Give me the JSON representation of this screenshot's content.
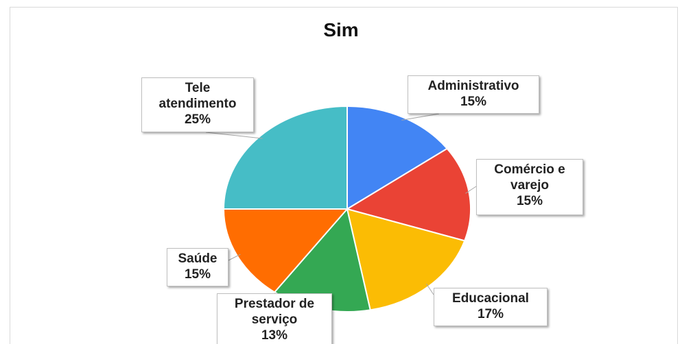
{
  "chart_data": {
    "type": "pie",
    "title": "Sim",
    "categories": [
      "Administrativo",
      "Comércio e varejo",
      "Educacional",
      "Prestador de serviço",
      "Saúde",
      "Tele atendimento"
    ],
    "values": [
      15,
      15,
      17,
      13,
      15,
      25
    ],
    "value_labels": [
      "15%",
      "15%",
      "17%",
      "13%",
      "15%",
      "25%"
    ],
    "colors": [
      "#4285f4",
      "#ea4335",
      "#fbbc04",
      "#34a853",
      "#ff6d01",
      "#46bdc6"
    ]
  }
}
